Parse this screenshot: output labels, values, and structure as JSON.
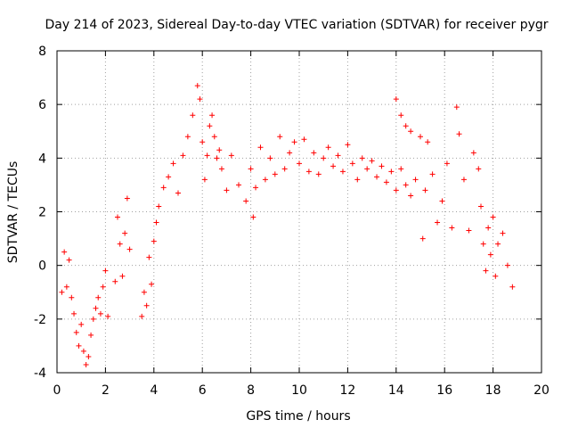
{
  "chart_data": {
    "type": "scatter",
    "title": "Day 214 of 2023, Sidereal Day-to-day VTEC variation (SDTVAR) for receiver pygr",
    "xlabel": "GPS time / hours",
    "ylabel": "SDTVAR / TECUs",
    "xlim": [
      0,
      20
    ],
    "ylim": [
      -4,
      8
    ],
    "xticks": [
      0,
      2,
      4,
      6,
      8,
      10,
      12,
      14,
      16,
      18,
      20
    ],
    "yticks": [
      -4,
      -2,
      0,
      2,
      4,
      6,
      8
    ],
    "grid": true,
    "marker": "+",
    "color": "#ff0000",
    "series": [
      {
        "name": "SDTVAR",
        "x": [
          0.2,
          0.3,
          0.4,
          0.5,
          0.6,
          0.7,
          0.8,
          0.9,
          1.0,
          1.1,
          1.2,
          1.3,
          1.4,
          1.5,
          1.6,
          1.7,
          1.8,
          1.9,
          2.0,
          2.1,
          2.4,
          2.5,
          2.6,
          2.7,
          2.8,
          2.9,
          3.0,
          3.5,
          3.6,
          3.7,
          3.8,
          3.9,
          4.0,
          4.1,
          4.2,
          4.4,
          4.6,
          4.8,
          5.0,
          5.2,
          5.4,
          5.6,
          5.8,
          5.9,
          6.0,
          6.1,
          6.2,
          6.3,
          6.4,
          6.5,
          6.6,
          6.7,
          6.8,
          7.0,
          7.2,
          7.5,
          7.8,
          8.0,
          8.1,
          8.2,
          8.4,
          8.6,
          8.8,
          9.0,
          9.2,
          9.4,
          9.6,
          9.8,
          10.0,
          10.2,
          10.4,
          10.6,
          10.8,
          11.0,
          11.2,
          11.4,
          11.6,
          11.8,
          12.0,
          12.2,
          12.4,
          12.6,
          12.8,
          13.0,
          13.2,
          13.4,
          13.6,
          13.8,
          14.0,
          14.2,
          14.4,
          14.6,
          14.8,
          14.0,
          14.2,
          14.4,
          14.6,
          15.0,
          15.1,
          15.2,
          15.3,
          15.5,
          15.7,
          15.9,
          16.1,
          16.3,
          16.5,
          16.6,
          16.8,
          17.0,
          17.2,
          17.4,
          17.5,
          17.6,
          17.7,
          17.8,
          17.9,
          18.0,
          18.1,
          18.2,
          18.4,
          18.6,
          18.8
        ],
        "y": [
          -1.0,
          0.5,
          -0.8,
          0.2,
          -1.2,
          -1.8,
          -2.5,
          -3.0,
          -2.2,
          -3.2,
          -3.7,
          -3.4,
          -2.6,
          -2.0,
          -1.6,
          -1.2,
          -1.8,
          -0.8,
          -0.2,
          -1.9,
          -0.6,
          1.8,
          0.8,
          -0.4,
          1.2,
          2.5,
          0.6,
          -1.9,
          -1.0,
          -1.5,
          0.3,
          -0.7,
          0.9,
          1.6,
          2.2,
          2.9,
          3.3,
          3.8,
          2.7,
          4.1,
          4.8,
          5.6,
          6.7,
          6.2,
          4.6,
          3.2,
          4.1,
          5.2,
          5.6,
          4.8,
          4.0,
          4.3,
          3.6,
          2.8,
          4.1,
          3.0,
          2.4,
          3.6,
          1.8,
          2.9,
          4.4,
          3.2,
          4.0,
          3.4,
          4.8,
          3.6,
          4.2,
          4.6,
          3.8,
          4.7,
          3.5,
          4.2,
          3.4,
          4.0,
          4.4,
          3.7,
          4.1,
          3.5,
          4.5,
          3.8,
          3.2,
          4.0,
          3.6,
          3.9,
          3.3,
          3.7,
          3.1,
          3.5,
          2.8,
          3.6,
          3.0,
          2.6,
          3.2,
          6.2,
          5.6,
          5.2,
          5.0,
          4.8,
          1.0,
          2.8,
          4.6,
          3.4,
          1.6,
          2.4,
          3.8,
          1.4,
          5.9,
          4.9,
          3.2,
          1.3,
          4.2,
          3.6,
          2.2,
          0.8,
          -0.2,
          1.4,
          0.4,
          1.8,
          -0.4,
          0.8,
          1.2,
          0.0,
          -0.8
        ]
      }
    ]
  }
}
